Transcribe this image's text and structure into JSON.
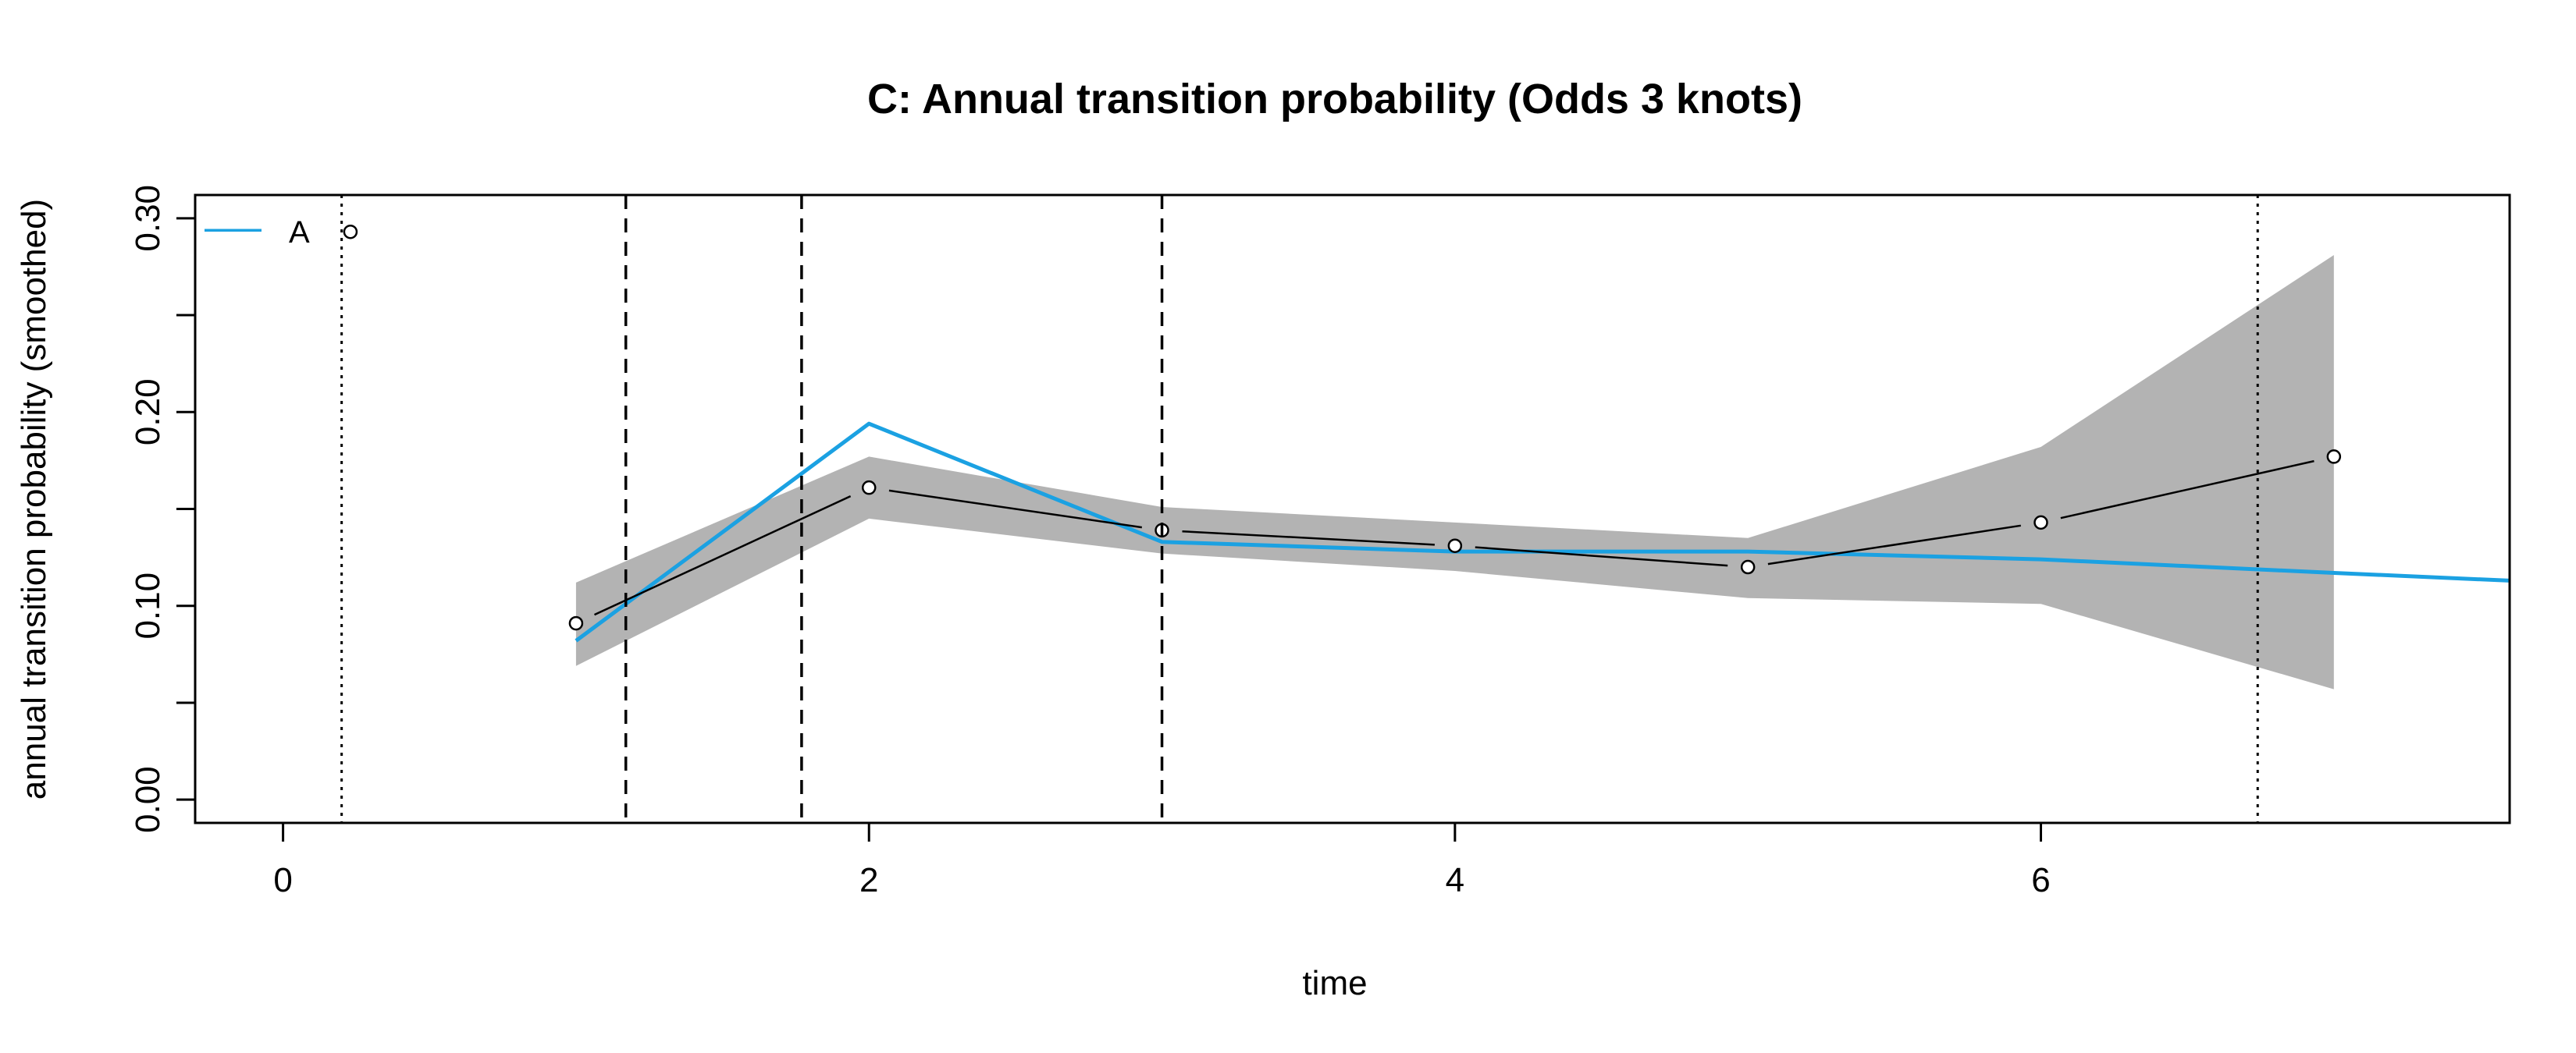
{
  "chart_data": {
    "type": "line",
    "title": "C: Annual transition probability (Odds 3 knots)",
    "xlabel": "time",
    "ylabel": "annual transition probability (smoothed)",
    "xlim": [
      -0.3,
      7.6
    ],
    "ylim": [
      -0.012,
      0.312
    ],
    "x_ticks": [
      0,
      2,
      4,
      6
    ],
    "y_ticks": [
      0.0,
      0.05,
      0.1,
      0.15,
      0.2,
      0.25,
      0.3
    ],
    "y_tick_labels": [
      "0.00",
      "",
      "0.10",
      "",
      "0.20",
      "",
      "0.30"
    ],
    "grid": false,
    "legend": {
      "position": "top-left",
      "entries": [
        {
          "label": "A",
          "color": "#1BA1E2"
        }
      ]
    },
    "observed": {
      "x": [
        1,
        2,
        3,
        4,
        5,
        6,
        7
      ],
      "y": [
        0.091,
        0.161,
        0.139,
        0.131,
        0.12,
        0.143,
        0.177
      ]
    },
    "confidence_band": {
      "x": [
        1,
        2,
        3,
        4,
        5,
        6,
        7
      ],
      "lower": [
        0.069,
        0.145,
        0.127,
        0.118,
        0.104,
        0.101,
        0.057
      ],
      "upper": [
        0.112,
        0.177,
        0.151,
        0.143,
        0.135,
        0.182,
        0.281
      ],
      "color": "#B3B3B3"
    },
    "fitted": {
      "name": "A",
      "color": "#1BA1E2",
      "x": [
        1,
        2,
        3,
        4,
        5,
        6,
        7,
        7.6
      ],
      "y": [
        0.082,
        0.194,
        0.133,
        0.128,
        0.128,
        0.124,
        0.117,
        0.113
      ]
    },
    "knots_dashed": [
      1.17,
      1.77,
      3.0
    ],
    "boundary_dotted": [
      0.2,
      6.74
    ],
    "extra_point": {
      "x": 0.23,
      "y": 0.293
    }
  }
}
